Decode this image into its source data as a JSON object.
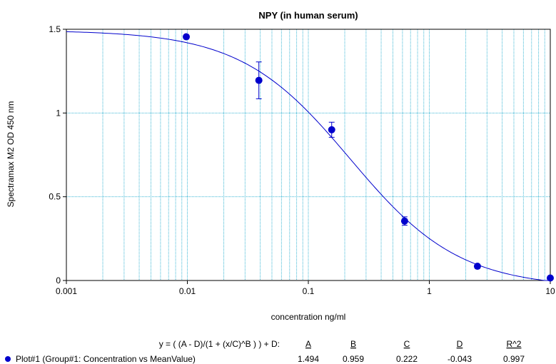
{
  "chart_data": {
    "type": "scatter",
    "title": "NPY (in human serum)",
    "xlabel": "concentration ng/ml",
    "ylabel": "Spectramax M2 OD 450 nm",
    "x_scale": "log",
    "xlim": [
      0.001,
      10
    ],
    "ylim": [
      0,
      1.5
    ],
    "x_ticks": [
      0.001,
      0.01,
      0.1,
      1,
      10
    ],
    "x_tick_labels": [
      "0.001",
      "0.01",
      "0.1",
      "1",
      "10"
    ],
    "y_ticks": [
      0,
      0.5,
      1,
      1.5
    ],
    "y_tick_labels": [
      "0",
      "0.5",
      "1",
      "1.5"
    ],
    "grid": true,
    "series": [
      {
        "name": "Plot#1 (Group#1: Concentration vs MeanValue)",
        "color": "#0000cc",
        "points": [
          {
            "x": 0.0098,
            "y": 1.455,
            "err": 0
          },
          {
            "x": 0.039,
            "y": 1.195,
            "err": 0.11
          },
          {
            "x": 0.156,
            "y": 0.9,
            "err": 0.045
          },
          {
            "x": 0.625,
            "y": 0.355,
            "err": 0.025
          },
          {
            "x": 2.5,
            "y": 0.085,
            "err": 0
          },
          {
            "x": 10,
            "y": 0.015,
            "err": 0
          }
        ]
      }
    ],
    "fit": {
      "equation": "y = ( (A - D)/(1 + (x/C)^B ) ) + D:",
      "param_headers": [
        "A",
        "B",
        "C",
        "D",
        "R^2"
      ],
      "param_values": [
        "1.494",
        "0.959",
        "0.222",
        "-0.043",
        "0.997"
      ],
      "A": 1.494,
      "B": 0.959,
      "C": 0.222,
      "D": -0.043
    }
  }
}
